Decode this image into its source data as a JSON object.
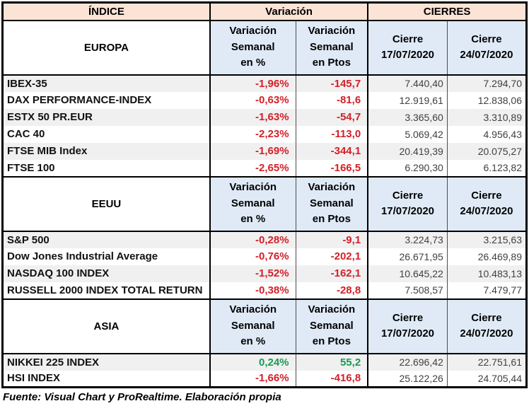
{
  "chart_data": {
    "type": "table",
    "header_groups": {
      "indice": "ÍNDICE",
      "variacion": "Variación",
      "cierres": "CIERRES"
    },
    "column_headers": {
      "pct": "Variación Semanal en %",
      "ptos": "Variación Semanal en Ptos",
      "close_prev": "Cierre 17/07/2020",
      "close_last": "Cierre 24/07/2020"
    },
    "sections": [
      {
        "region": "EUROPA",
        "rows": [
          {
            "name": "IBEX-35",
            "pct": "-1,96%",
            "ptos": "-145,7",
            "close1": "7.440,40",
            "close2": "7.294,70"
          },
          {
            "name": "DAX PERFORMANCE-INDEX",
            "pct": "-0,63%",
            "ptos": "-81,6",
            "close1": "12.919,61",
            "close2": "12.838,06"
          },
          {
            "name": "ESTX 50 PR.EUR",
            "pct": "-1,63%",
            "ptos": "-54,7",
            "close1": "3.365,60",
            "close2": "3.310,89"
          },
          {
            "name": "CAC 40",
            "pct": "-2,23%",
            "ptos": "-113,0",
            "close1": "5.069,42",
            "close2": "4.956,43"
          },
          {
            "name": "FTSE MIB Index",
            "pct": "-1,69%",
            "ptos": "-344,1",
            "close1": "20.419,39",
            "close2": "20.075,27"
          },
          {
            "name": "FTSE 100",
            "pct": "-2,65%",
            "ptos": "-166,5",
            "close1": "6.290,30",
            "close2": "6.123,82"
          }
        ]
      },
      {
        "region": "EEUU",
        "rows": [
          {
            "name": "S&P 500",
            "pct": "-0,28%",
            "ptos": "-9,1",
            "close1": "3.224,73",
            "close2": "3.215,63"
          },
          {
            "name": "Dow Jones Industrial Average",
            "pct": "-0,76%",
            "ptos": "-202,1",
            "close1": "26.671,95",
            "close2": "26.469,89"
          },
          {
            "name": "NASDAQ 100 INDEX",
            "pct": "-1,52%",
            "ptos": "-162,1",
            "close1": "10.645,22",
            "close2": "10.483,13"
          },
          {
            "name": "RUSSELL 2000 INDEX TOTAL RETURN",
            "pct": "-0,38%",
            "ptos": "-28,8",
            "close1": "7.508,57",
            "close2": "7.479,77"
          }
        ]
      },
      {
        "region": "ASIA",
        "rows": [
          {
            "name": "NIKKEI 225 INDEX",
            "pct": "0,24%",
            "ptos": "55,2",
            "close1": "22.696,42",
            "close2": "22.751,61"
          },
          {
            "name": "HSI INDEX",
            "pct": "-1,66%",
            "ptos": "-416,8",
            "close1": "25.122,26",
            "close2": "24.705,44"
          }
        ]
      }
    ],
    "source_note": "Fuente: Visual Chart y ProRealtime. Elaboración propia"
  },
  "display": {
    "pct_header": "Variación\nSemanal\nen %",
    "ptos_header": "Variación\nSemanal\nen Ptos",
    "close_prev_header": "Cierre\n17/07/2020",
    "close_last_header": "Cierre\n24/07/2020"
  },
  "colors": {
    "negative": "#d41f28",
    "positive": "#199a52",
    "group_header_bg": "#fbe3d5",
    "subheader_bg": "#dfeaf6",
    "row_alt_bg": "#f0f0f0"
  }
}
